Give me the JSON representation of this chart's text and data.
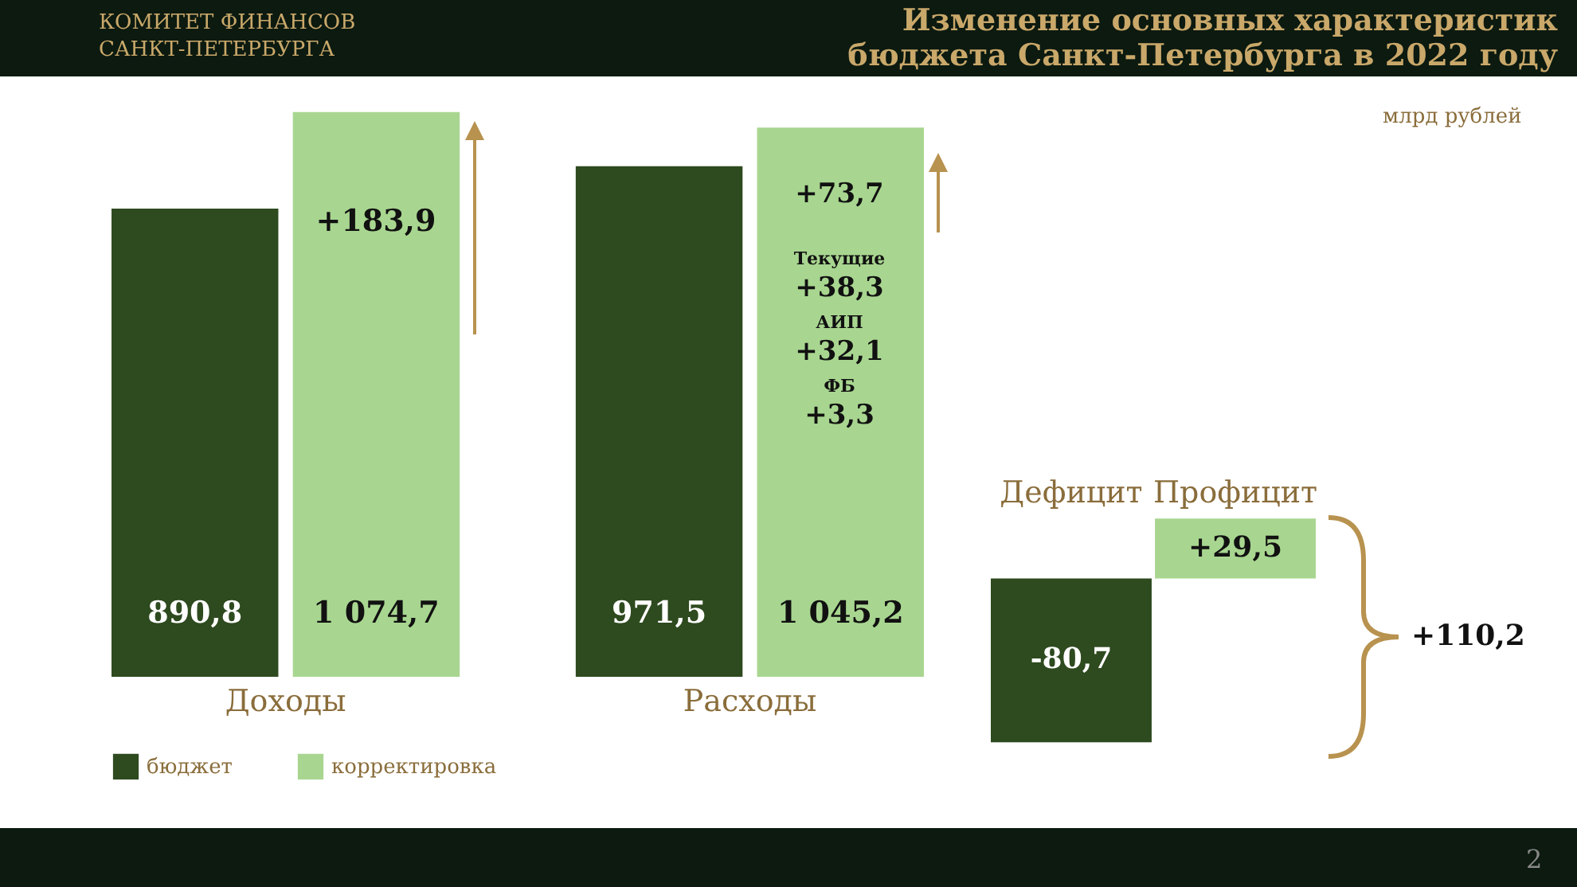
{
  "chart_data": [
    {
      "type": "bar",
      "title": "Изменение основных характеристик бюджета Санкт-Петербурга в 2022 году",
      "categories": [
        "Доходы",
        "Расходы"
      ],
      "series": [
        {
          "name": "бюджет",
          "color": "#2e4a1f",
          "values": [
            890.8,
            971.5
          ],
          "value_labels": [
            "890,8",
            "971,5"
          ]
        },
        {
          "name": "корректировка",
          "color": "#a8d690",
          "values": [
            1074.7,
            1045.2
          ],
          "value_labels": [
            "1 074,7",
            "1 045,2"
          ]
        }
      ],
      "legend": "bottom",
      "annotations": [
        "млрд рублей",
        "+183,9",
        "+73,7",
        "Текущие",
        "+38,3",
        "АИП",
        "+32,1",
        "ФБ",
        "+3,3",
        "КОМИТЕТ ФИНАНСОВ САНКТ-ПЕТЕРБУРГА",
        "2"
      ]
    },
    {
      "type": "bar",
      "categories": [
        "Дефицит",
        "Профицит"
      ],
      "values": [
        -80.7,
        29.5
      ],
      "colors": [
        "#2e4a1f",
        "#a8d690"
      ],
      "value_labels": [
        "-80,7",
        "+29,5"
      ],
      "annotations": [
        "+110,2"
      ]
    }
  ]
}
